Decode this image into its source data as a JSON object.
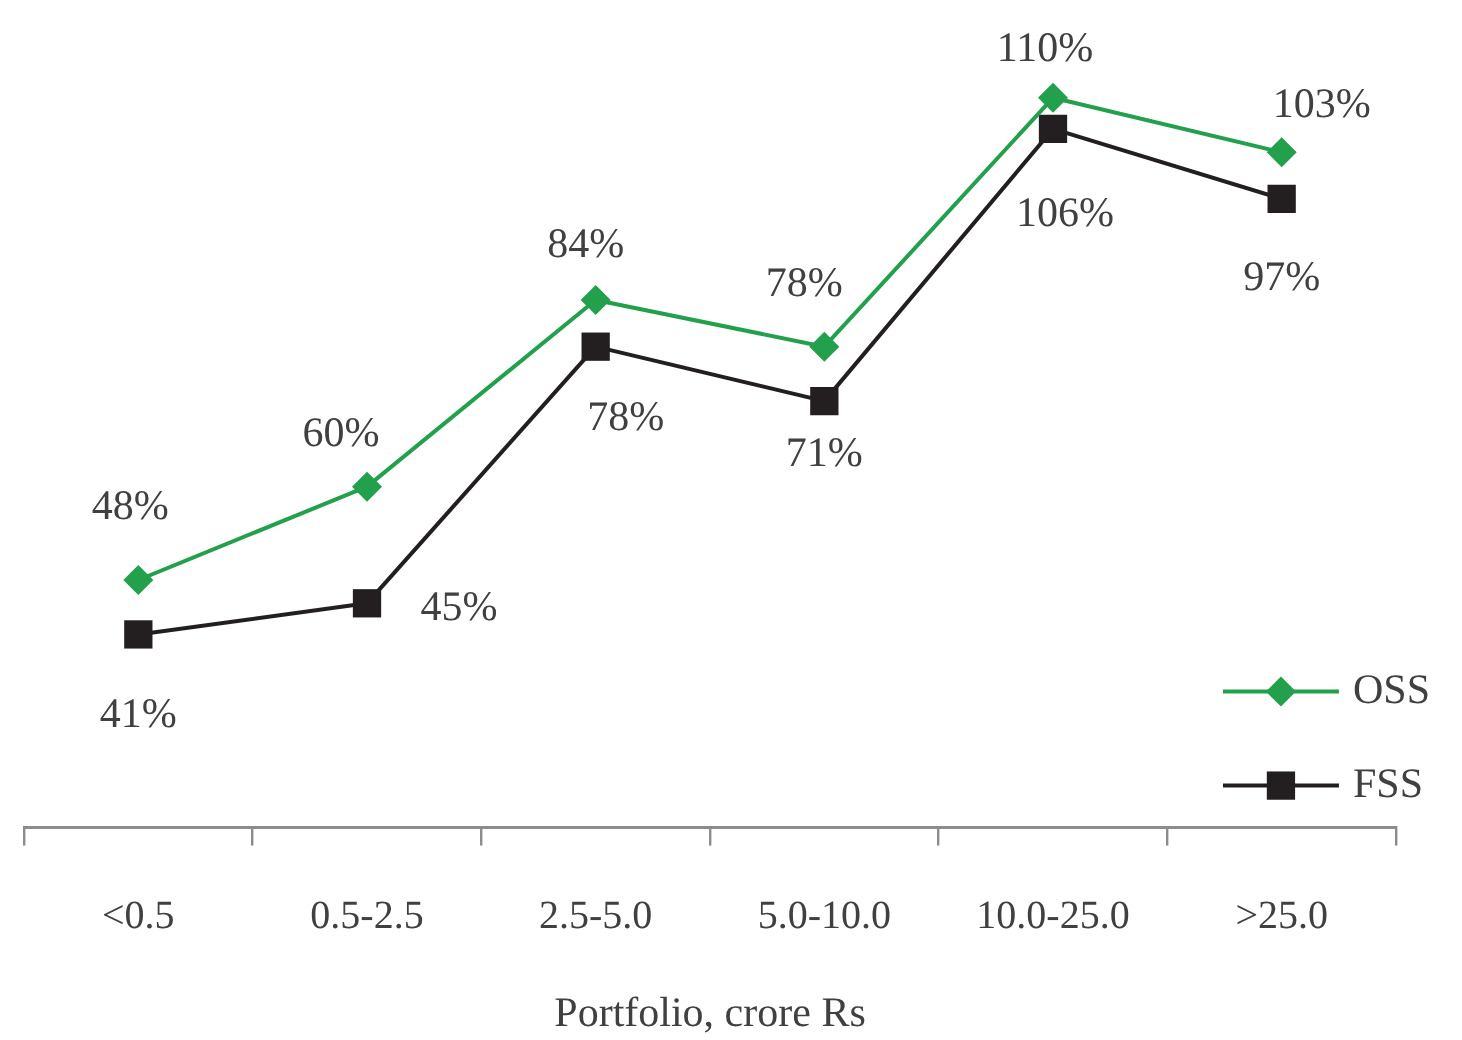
{
  "chart_data": {
    "type": "line",
    "xlabel": "Portfolio, crore Rs",
    "categories": [
      "<0.5",
      "0.5-2.5",
      "2.5-5.0",
      "5.0-10.0",
      "10.0-25.0",
      ">25.0"
    ],
    "series": [
      {
        "name": "OSS",
        "color": "#22a04b",
        "marker": "diamond",
        "values": [
          48,
          60,
          84,
          78,
          110,
          103
        ],
        "value_labels": [
          "48%",
          "60%",
          "84%",
          "78%",
          "110%",
          "103%"
        ]
      },
      {
        "name": "FSS",
        "color": "#231f20",
        "marker": "square",
        "values": [
          41,
          45,
          78,
          71,
          106,
          97
        ],
        "value_labels": [
          "41%",
          "45%",
          "78%",
          "71%",
          "106%",
          "97%"
        ]
      }
    ],
    "legend": "bottom right",
    "tick_labels": "x"
  }
}
